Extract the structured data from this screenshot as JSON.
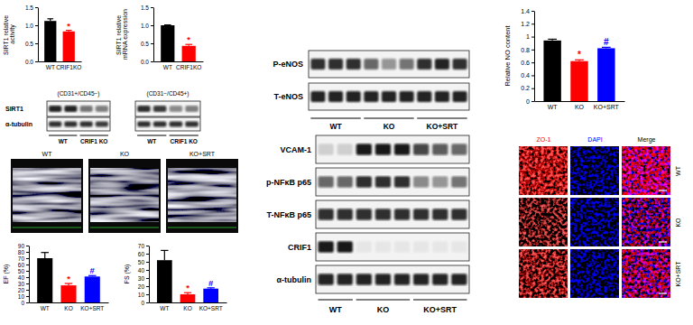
{
  "chart_data": [
    {
      "type": "bar",
      "ylabel": "SIRT1 relative activity",
      "categories": [
        "WT",
        "CRIF1KO"
      ],
      "values": [
        1.12,
        0.83
      ],
      "errors": [
        0.06,
        0.03
      ],
      "colors": [
        "#000000",
        "#ff0000"
      ],
      "significance": [
        null,
        "*"
      ],
      "ylim": [
        0,
        1.5
      ],
      "yticks": [
        {
          "value": 0,
          "label": "0.0"
        },
        0.5,
        {
          "value": 1,
          "label": "1.0"
        },
        1.5
      ]
    },
    {
      "type": "bar",
      "ylabel": "SIRT1 relative mRNA expression",
      "categories": [
        "WT",
        "CRIF1KO"
      ],
      "values": [
        1.0,
        0.43
      ],
      "errors": [
        0.01,
        0.04
      ],
      "colors": [
        "#000000",
        "#ff0000"
      ],
      "significance": [
        null,
        "*"
      ],
      "ylim": [
        0,
        1.5
      ],
      "yticks": [
        {
          "value": 0,
          "label": "0.0"
        },
        0.5,
        {
          "value": 1,
          "label": "1.0"
        },
        1.5
      ]
    },
    {
      "type": "bar",
      "ylabel": "EF (%)",
      "categories": [
        "WT",
        "KO",
        "KO+SRT"
      ],
      "values": [
        70,
        27,
        41
      ],
      "errors": [
        9,
        3,
        1.5
      ],
      "colors": [
        "#000000",
        "#ff0000",
        "#0000ff"
      ],
      "significance": [
        null,
        "*",
        "#"
      ],
      "ylim": [
        0,
        90
      ],
      "yticks": [
        0,
        10,
        20,
        30,
        40,
        50,
        60,
        70,
        80,
        90
      ]
    },
    {
      "type": "bar",
      "ylabel": "FS (%)",
      "categories": [
        "WT",
        "KO",
        "KO+SRT"
      ],
      "values": [
        52,
        10,
        17
      ],
      "errors": [
        12,
        2,
        1
      ],
      "colors": [
        "#000000",
        "#ff0000",
        "#0000ff"
      ],
      "significance": [
        null,
        "*",
        "#"
      ],
      "ylim": [
        0,
        70
      ],
      "yticks": [
        0,
        10,
        20,
        30,
        40,
        50,
        60,
        70
      ]
    },
    {
      "type": "bar",
      "ylabel": "Relative NO content",
      "categories": [
        "WT",
        "KO",
        "KO+SRT"
      ],
      "values": [
        0.94,
        0.62,
        0.82
      ],
      "errors": [
        0.02,
        0.02,
        0.015
      ],
      "colors": [
        "#000000",
        "#ff0000",
        "#0000ff"
      ],
      "significance": [
        null,
        "*",
        "#"
      ],
      "ylim": [
        0,
        1.4
      ],
      "yticks": [
        0,
        0.2,
        0.4,
        0.6,
        0.8,
        1,
        1.2,
        1.4
      ]
    }
  ],
  "blots": [
    {
      "row_labels": [
        "SIRT1",
        "α-tubulin"
      ],
      "panels": [
        {
          "title": "(CD31+/CD45−)",
          "groups": [
            "WT",
            "CRIF1 KO"
          ],
          "group_lanes": [
            2,
            2
          ],
          "bands": [
            [
              0.9,
              0.9,
              0.55,
              0.5
            ],
            [
              0.85,
              0.85,
              0.85,
              0.8
            ]
          ]
        },
        {
          "title": "(CD31−/CD45+)",
          "groups": [
            "WT",
            "CRIF1 KO"
          ],
          "group_lanes": [
            2,
            2
          ],
          "bands": [
            [
              0.85,
              0.8,
              0.45,
              0.5
            ],
            [
              0.85,
              0.85,
              0.85,
              0.85
            ]
          ]
        }
      ]
    },
    {
      "row_labels": [
        "P-eNOS",
        "T-eNOS"
      ],
      "panels": [
        {
          "groups": [
            "WT",
            "KO",
            "KO+SRT"
          ],
          "group_lanes": [
            3,
            3,
            3
          ],
          "bands": [
            [
              0.85,
              0.85,
              0.85,
              0.6,
              0.4,
              0.55,
              0.85,
              0.9,
              0.85
            ],
            [
              0.9,
              0.9,
              0.9,
              0.9,
              0.9,
              0.9,
              0.9,
              0.9,
              0.9
            ]
          ]
        }
      ]
    },
    {
      "row_labels": [
        "VCAM-1",
        "p-NFκB p65",
        "T-NFκB p65",
        "CRIF1",
        "α-tubulin"
      ],
      "panels": [
        {
          "groups": [
            "WT",
            "KO",
            "KO+SRT"
          ],
          "group_lanes": [
            2,
            3,
            3
          ],
          "bands": [
            [
              0.15,
              0.15,
              0.95,
              0.95,
              0.95,
              0.75,
              0.65,
              0.6
            ],
            [
              0.6,
              0.6,
              0.85,
              0.85,
              0.85,
              0.45,
              0.4,
              0.55
            ],
            [
              0.85,
              0.85,
              0.85,
              0.85,
              0.85,
              0.85,
              0.85,
              0.85
            ],
            [
              0.95,
              0.95,
              0.05,
              0.05,
              0.05,
              0.05,
              0.05,
              0.05
            ],
            [
              0.9,
              0.9,
              0.9,
              0.9,
              0.9,
              0.9,
              0.9,
              0.9
            ]
          ]
        }
      ]
    }
  ],
  "echo": {
    "labels": [
      "WT",
      "KO",
      "KO+SRT"
    ]
  },
  "immunofluorescence": {
    "channels": [
      "ZO-1",
      "DAPI",
      "Merge"
    ],
    "channel_colors": [
      "#ff0000",
      "#0000ff",
      "#000000"
    ],
    "rows": [
      "WT",
      "KO",
      "KO+SRT"
    ]
  }
}
